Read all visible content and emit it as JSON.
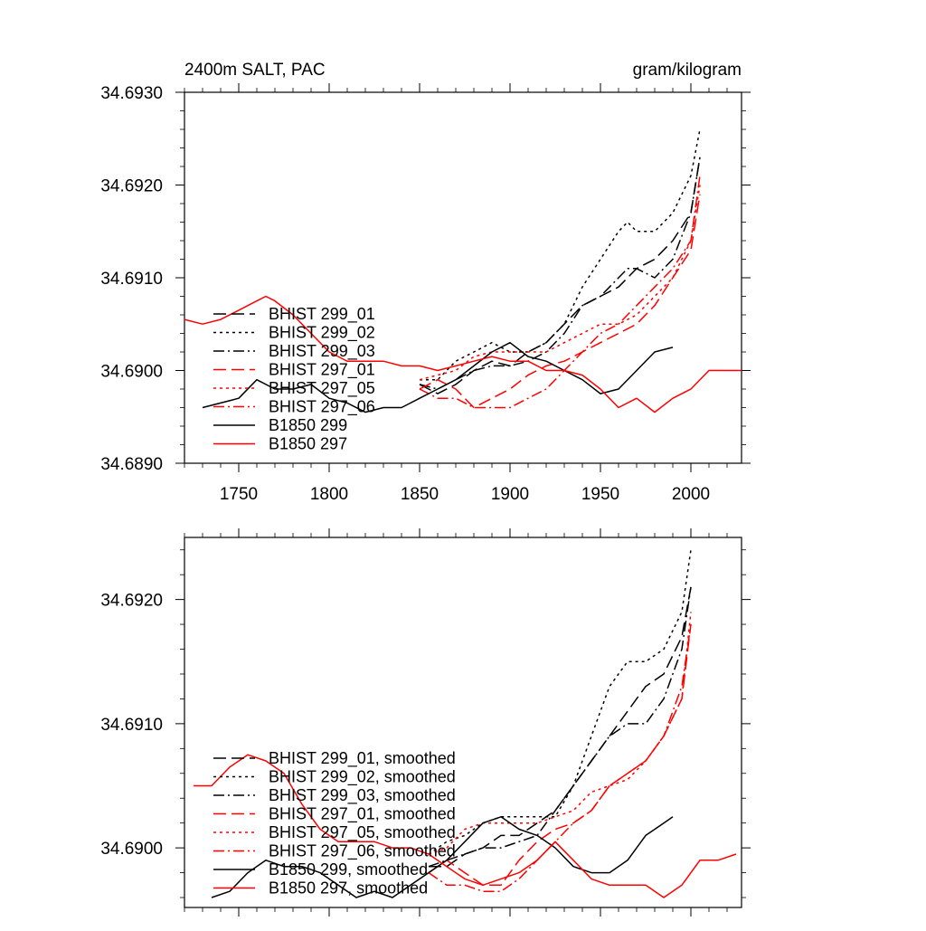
{
  "chart_data": [
    {
      "type": "line",
      "title_left": "2400m SALT, PAC",
      "title_right": "gram/kilogram",
      "xlim": [
        1720,
        2028
      ],
      "ylim": [
        34.689,
        34.693
      ],
      "x_ticks": [
        1750,
        1800,
        1850,
        1900,
        1950,
        2000
      ],
      "x_tick_labels": [
        "1750",
        "1800",
        "1850",
        "1900",
        "1950",
        "2000"
      ],
      "y_ticks": [
        34.689,
        34.69,
        34.691,
        34.692,
        34.693
      ],
      "y_tick_labels": [
        "34.6890",
        "34.6900",
        "34.6910",
        "34.6920",
        "34.6930"
      ],
      "series": [
        {
          "name": "BHIST 299_01",
          "color": "#000000",
          "dash": "long-dash",
          "x": [
            1850,
            1860,
            1870,
            1880,
            1890,
            1900,
            1910,
            1920,
            1930,
            1940,
            1950,
            1960,
            1970,
            1980,
            1990,
            2000,
            2005
          ],
          "y": [
            34.68985,
            34.68975,
            34.68985,
            34.69,
            34.6901,
            34.69005,
            34.6902,
            34.6903,
            34.6905,
            34.6907,
            34.6908,
            34.6909,
            34.6911,
            34.6912,
            34.6914,
            34.6917,
            34.6923
          ]
        },
        {
          "name": "BHIST 299_02",
          "color": "#000000",
          "dash": "dot",
          "x": [
            1850,
            1860,
            1870,
            1880,
            1890,
            1900,
            1910,
            1920,
            1930,
            1940,
            1950,
            1960,
            1965,
            1970,
            1980,
            1990,
            2000,
            2005
          ],
          "y": [
            34.6899,
            34.6899,
            34.6901,
            34.6902,
            34.6903,
            34.6902,
            34.6902,
            34.6903,
            34.6905,
            34.6909,
            34.6912,
            34.6915,
            34.6916,
            34.6915,
            34.6915,
            34.6917,
            34.6921,
            34.6926
          ]
        },
        {
          "name": "BHIST 299_03",
          "color": "#000000",
          "dash": "dash-dot",
          "x": [
            1850,
            1860,
            1870,
            1880,
            1890,
            1900,
            1910,
            1920,
            1930,
            1940,
            1950,
            1960,
            1965,
            1970,
            1980,
            1990,
            2000,
            2005
          ],
          "y": [
            34.68985,
            34.6898,
            34.6899,
            34.69,
            34.69005,
            34.69005,
            34.6901,
            34.6902,
            34.6904,
            34.6907,
            34.6908,
            34.691,
            34.6911,
            34.6911,
            34.691,
            34.6912,
            34.6917,
            34.6923
          ]
        },
        {
          "name": "BHIST 297_01",
          "color": "#ff0000",
          "dash": "long-dash",
          "x": [
            1850,
            1860,
            1870,
            1880,
            1890,
            1900,
            1910,
            1920,
            1930,
            1940,
            1950,
            1960,
            1970,
            1980,
            1990,
            2000,
            2005
          ],
          "y": [
            34.6898,
            34.6899,
            34.6898,
            34.6896,
            34.6897,
            34.6898,
            34.68995,
            34.69005,
            34.6901,
            34.6902,
            34.6903,
            34.6904,
            34.6905,
            34.6907,
            34.691,
            34.6913,
            34.6919
          ]
        },
        {
          "name": "BHIST 297_05",
          "color": "#ff0000",
          "dash": "dot",
          "x": [
            1850,
            1860,
            1870,
            1880,
            1890,
            1900,
            1910,
            1920,
            1930,
            1940,
            1950,
            1960,
            1970,
            1980,
            1990,
            2000,
            2005
          ],
          "y": [
            34.6899,
            34.68995,
            34.69,
            34.69015,
            34.6902,
            34.6902,
            34.6902,
            34.6902,
            34.6903,
            34.6904,
            34.6905,
            34.6905,
            34.6906,
            34.6908,
            34.691,
            34.6914,
            34.692
          ]
        },
        {
          "name": "BHIST 297_06",
          "color": "#ff0000",
          "dash": "dash-dot",
          "x": [
            1850,
            1860,
            1870,
            1880,
            1890,
            1900,
            1910,
            1920,
            1930,
            1940,
            1950,
            1960,
            1970,
            1980,
            1990,
            2000,
            2005
          ],
          "y": [
            34.6898,
            34.6897,
            34.6897,
            34.6896,
            34.6896,
            34.6896,
            34.6897,
            34.6898,
            34.69,
            34.6902,
            34.6904,
            34.6905,
            34.6907,
            34.6909,
            34.6911,
            34.6914,
            34.6921
          ]
        },
        {
          "name": "B1850 299",
          "color": "#000000",
          "dash": "solid",
          "x": [
            1730,
            1740,
            1750,
            1760,
            1770,
            1780,
            1790,
            1800,
            1810,
            1820,
            1830,
            1840,
            1850,
            1860,
            1870,
            1880,
            1890,
            1900,
            1910,
            1920,
            1930,
            1940,
            1950,
            1960,
            1970,
            1980,
            1990
          ],
          "y": [
            34.6896,
            34.68965,
            34.6897,
            34.6899,
            34.6898,
            34.6898,
            34.68985,
            34.6897,
            34.68965,
            34.68955,
            34.6896,
            34.6896,
            34.6897,
            34.6898,
            34.6899,
            34.69005,
            34.6902,
            34.6903,
            34.69015,
            34.6901,
            34.69,
            34.6899,
            34.68975,
            34.6898,
            34.69,
            34.6902,
            34.69025
          ]
        },
        {
          "name": "B1850 297",
          "color": "#ff0000",
          "dash": "solid",
          "x": [
            1720,
            1730,
            1740,
            1750,
            1760,
            1765,
            1770,
            1780,
            1790,
            1800,
            1810,
            1820,
            1830,
            1840,
            1850,
            1860,
            1870,
            1880,
            1890,
            1900,
            1910,
            1920,
            1930,
            1940,
            1950,
            1960,
            1970,
            1980,
            1990,
            2000,
            2010,
            2020,
            2028
          ],
          "y": [
            34.69055,
            34.6905,
            34.69055,
            34.69065,
            34.69075,
            34.6908,
            34.69075,
            34.6906,
            34.6904,
            34.6902,
            34.6901,
            34.6901,
            34.6901,
            34.69005,
            34.69005,
            34.69,
            34.69005,
            34.6901,
            34.69015,
            34.6901,
            34.6901,
            34.69,
            34.69,
            34.68995,
            34.6898,
            34.6896,
            34.6897,
            34.68955,
            34.6897,
            34.6898,
            34.69,
            34.69,
            34.69
          ]
        }
      ]
    },
    {
      "type": "line",
      "xlim": [
        1720,
        2028
      ],
      "ylim": [
        34.68952,
        34.6925
      ],
      "x_ticks": [
        1750,
        1800,
        1850,
        1900,
        1950,
        2000
      ],
      "y_ticks": [
        34.69,
        34.691,
        34.692
      ],
      "y_tick_labels": [
        "34.6900",
        "34.6910",
        "34.6920"
      ],
      "series": [
        {
          "name": "BHIST 299_01, smoothed",
          "color": "#000000",
          "dash": "long-dash",
          "x": [
            1855,
            1865,
            1875,
            1885,
            1895,
            1905,
            1915,
            1925,
            1935,
            1945,
            1955,
            1965,
            1975,
            1985,
            1995,
            2000
          ],
          "y": [
            34.68985,
            34.68985,
            34.68995,
            34.69,
            34.6901,
            34.6901,
            34.6902,
            34.6903,
            34.6905,
            34.6907,
            34.6909,
            34.6911,
            34.6913,
            34.6914,
            34.6917,
            34.6921
          ]
        },
        {
          "name": "BHIST 299_02, smoothed",
          "color": "#000000",
          "dash": "dot",
          "x": [
            1855,
            1865,
            1875,
            1885,
            1895,
            1905,
            1915,
            1925,
            1935,
            1945,
            1955,
            1965,
            1975,
            1985,
            1995,
            2000
          ],
          "y": [
            34.68995,
            34.69005,
            34.6901,
            34.6902,
            34.69025,
            34.69025,
            34.69025,
            34.69025,
            34.6905,
            34.6909,
            34.6913,
            34.6915,
            34.6915,
            34.6916,
            34.6919,
            34.6924
          ]
        },
        {
          "name": "BHIST 299_03, smoothed",
          "color": "#000000",
          "dash": "dash-dot",
          "x": [
            1855,
            1865,
            1875,
            1885,
            1895,
            1905,
            1915,
            1925,
            1935,
            1945,
            1955,
            1965,
            1975,
            1985,
            1995,
            2000
          ],
          "y": [
            34.68985,
            34.6899,
            34.68995,
            34.69,
            34.69,
            34.69005,
            34.6901,
            34.6903,
            34.6905,
            34.6907,
            34.6909,
            34.691,
            34.691,
            34.6912,
            34.6916,
            34.6921
          ]
        },
        {
          "name": "BHIST 297_01, smoothed",
          "color": "#ff0000",
          "dash": "long-dash",
          "x": [
            1855,
            1865,
            1875,
            1885,
            1895,
            1905,
            1915,
            1925,
            1935,
            1945,
            1955,
            1965,
            1975,
            1985,
            1995,
            2000
          ],
          "y": [
            34.6898,
            34.6899,
            34.6898,
            34.6897,
            34.6897,
            34.6899,
            34.69005,
            34.69015,
            34.6902,
            34.6903,
            34.6905,
            34.6906,
            34.6907,
            34.6909,
            34.6912,
            34.6918
          ]
        },
        {
          "name": "BHIST 297_05, smoothed",
          "color": "#ff0000",
          "dash": "dot",
          "x": [
            1855,
            1865,
            1875,
            1885,
            1895,
            1905,
            1915,
            1925,
            1935,
            1945,
            1955,
            1965,
            1975,
            1985,
            1995,
            2000
          ],
          "y": [
            34.68995,
            34.69,
            34.69015,
            34.6902,
            34.6902,
            34.6902,
            34.6902,
            34.69025,
            34.6903,
            34.69045,
            34.6905,
            34.69055,
            34.6907,
            34.6909,
            34.6912,
            34.6919
          ]
        },
        {
          "name": "BHIST 297_06, smoothed",
          "color": "#ff0000",
          "dash": "dash-dot",
          "x": [
            1855,
            1865,
            1875,
            1885,
            1895,
            1905,
            1915,
            1925,
            1935,
            1945,
            1955,
            1965,
            1975,
            1985,
            1995,
            2000
          ],
          "y": [
            34.6898,
            34.6897,
            34.6897,
            34.68965,
            34.68965,
            34.68975,
            34.6899,
            34.69005,
            34.6902,
            34.6903,
            34.6905,
            34.6906,
            34.6907,
            34.6909,
            34.6913,
            34.6918
          ]
        },
        {
          "name": "B1850 299, smoothed",
          "color": "#000000",
          "dash": "solid",
          "x": [
            1735,
            1745,
            1755,
            1765,
            1775,
            1785,
            1795,
            1805,
            1815,
            1825,
            1835,
            1845,
            1855,
            1865,
            1875,
            1885,
            1895,
            1905,
            1915,
            1925,
            1935,
            1945,
            1955,
            1965,
            1975,
            1985,
            1990
          ],
          "y": [
            34.6896,
            34.68965,
            34.6898,
            34.6899,
            34.68985,
            34.68985,
            34.6898,
            34.6897,
            34.6896,
            34.68965,
            34.6896,
            34.6897,
            34.6898,
            34.6899,
            34.69005,
            34.6902,
            34.69025,
            34.69015,
            34.6901,
            34.69,
            34.68985,
            34.6898,
            34.6898,
            34.6899,
            34.6901,
            34.6902,
            34.69025
          ]
        },
        {
          "name": "B1850 297, smoothed",
          "color": "#ff0000",
          "dash": "solid",
          "x": [
            1725,
            1735,
            1745,
            1755,
            1765,
            1775,
            1785,
            1795,
            1805,
            1815,
            1825,
            1835,
            1845,
            1855,
            1865,
            1875,
            1885,
            1895,
            1905,
            1915,
            1925,
            1935,
            1945,
            1955,
            1965,
            1975,
            1985,
            1995,
            2005,
            2015,
            2025
          ],
          "y": [
            34.6905,
            34.6905,
            34.69065,
            34.69075,
            34.6907,
            34.6906,
            34.69035,
            34.69015,
            34.69005,
            34.69005,
            34.69005,
            34.69,
            34.69,
            34.68995,
            34.68985,
            34.68975,
            34.6897,
            34.68975,
            34.6898,
            34.6899,
            34.69005,
            34.6899,
            34.68975,
            34.6897,
            34.6897,
            34.6897,
            34.6896,
            34.6897,
            34.6899,
            34.6899,
            34.68995
          ]
        }
      ]
    }
  ]
}
